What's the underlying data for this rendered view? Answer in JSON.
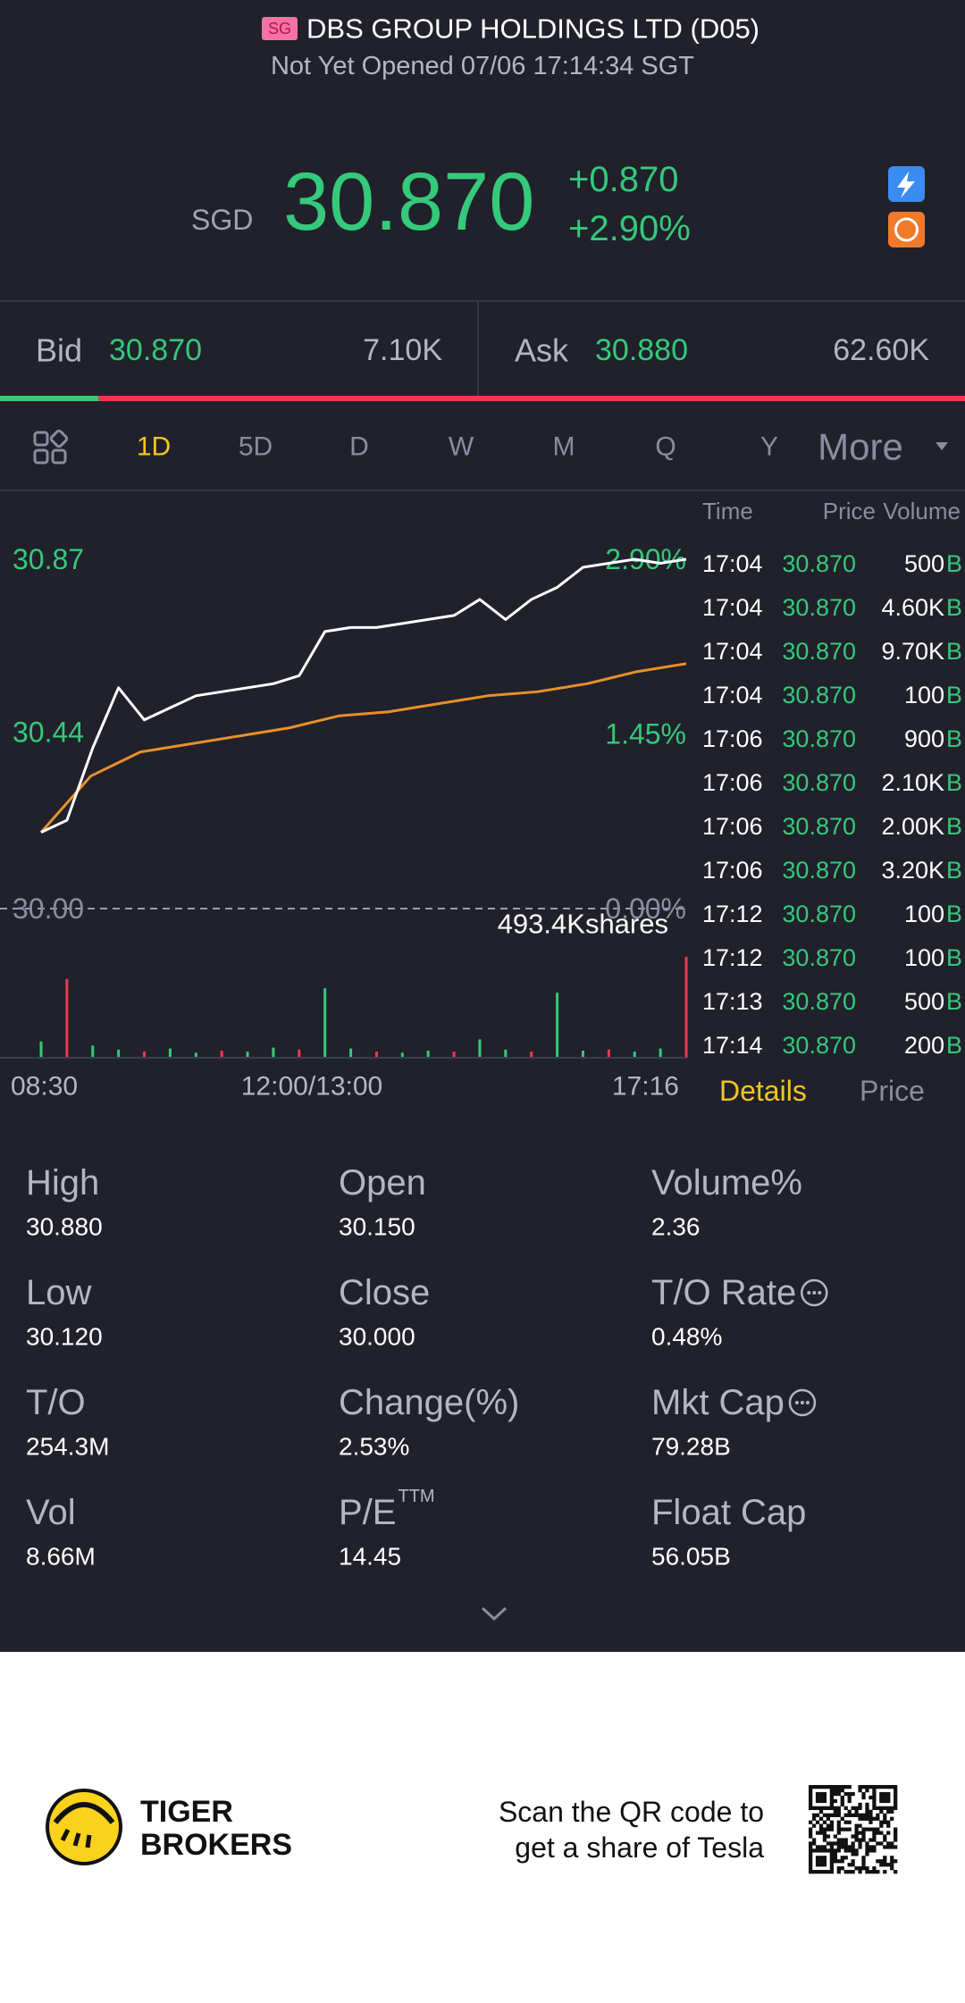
{
  "header": {
    "badge": "SG",
    "title": "DBS GROUP HOLDINGS LTD (D05)",
    "status": "Not Yet Opened 07/06 17:14:34 SGT"
  },
  "quote": {
    "currency": "SGD",
    "price": "30.870",
    "change": "+0.870",
    "change_pct": "+2.90%"
  },
  "order_book": {
    "bid_label": "Bid",
    "bid_price": "30.870",
    "bid_size": "7.10K",
    "ask_label": "Ask",
    "ask_price": "30.880",
    "ask_size": "62.60K"
  },
  "tabs": [
    "1D",
    "5D",
    "D",
    "W",
    "M",
    "Q",
    "Y",
    "More"
  ],
  "active_tab": 0,
  "chart_data": {
    "type": "line",
    "series": [
      {
        "color": "#ffffff",
        "values": [
          30.19,
          30.22,
          30.4,
          30.55,
          30.47,
          30.5,
          30.53,
          30.54,
          30.55,
          30.56,
          30.58,
          30.69,
          30.7,
          30.7,
          30.71,
          30.72,
          30.73,
          30.77,
          30.72,
          30.77,
          30.8,
          30.85,
          30.86,
          30.87,
          30.86,
          30.87
        ]
      },
      {
        "color": "#e8902a",
        "values": [
          30.19,
          30.33,
          30.39,
          30.41,
          30.43,
          30.45,
          30.48,
          30.49,
          30.51,
          30.53,
          30.54,
          30.56,
          30.59,
          30.61
        ]
      }
    ],
    "ylim": [
      30.0,
      30.87
    ],
    "yticks": [
      {
        "value": 30.0,
        "label": "30.00"
      },
      {
        "value": 30.44,
        "label": "30.44"
      },
      {
        "value": 30.87,
        "label": "30.87"
      }
    ],
    "y2lim": [
      0,
      2.9
    ],
    "y2ticks": [
      {
        "value": 0,
        "label": "0.00%"
      },
      {
        "value": 1.45,
        "label": "1.45%"
      },
      {
        "value": 2.9,
        "label": "2.90%"
      }
    ],
    "x_labels": [
      "08:30",
      "12:00/13:00",
      "17:16"
    ],
    "volume": {
      "values": [
        80,
        385,
        60,
        40,
        30,
        45,
        25,
        35,
        30,
        50,
        40,
        340,
        45,
        30,
        25,
        35,
        30,
        90,
        40,
        30,
        318,
        35,
        40,
        30,
        45,
        493.4
      ],
      "ylim": [
        0,
        493.4
      ],
      "yticks": [
        {
          "value": 493.4,
          "label": "493.4Kshares"
        }
      ]
    }
  },
  "trades": {
    "headers": [
      "Time",
      "Price",
      "Volume"
    ],
    "rows": [
      [
        "17:04",
        "30.870",
        "500",
        "B"
      ],
      [
        "17:04",
        "30.870",
        "4.60K",
        "B"
      ],
      [
        "17:04",
        "30.870",
        "9.70K",
        "B"
      ],
      [
        "17:04",
        "30.870",
        "100",
        "B"
      ],
      [
        "17:06",
        "30.870",
        "900",
        "B"
      ],
      [
        "17:06",
        "30.870",
        "2.10K",
        "B"
      ],
      [
        "17:06",
        "30.870",
        "2.00K",
        "B"
      ],
      [
        "17:06",
        "30.870",
        "3.20K",
        "B"
      ],
      [
        "17:12",
        "30.870",
        "100",
        "B"
      ],
      [
        "17:12",
        "30.870",
        "100",
        "B"
      ],
      [
        "17:13",
        "30.870",
        "500",
        "B"
      ],
      [
        "17:14",
        "30.870",
        "200",
        "B"
      ]
    ],
    "tabs": [
      "Details",
      "Price"
    ],
    "active_tab": 0
  },
  "stats": [
    {
      "label": "High",
      "value": "30.880"
    },
    {
      "label": "Open",
      "value": "30.150"
    },
    {
      "label": "Volume%",
      "value": "2.36"
    },
    {
      "label": "Low",
      "value": "30.120"
    },
    {
      "label": "Close",
      "value": "30.000"
    },
    {
      "label": "T/O Rate",
      "value": "0.48%",
      "info": true
    },
    {
      "label": "T/O",
      "value": "254.3M"
    },
    {
      "label": "Change(%)",
      "value": "2.53%"
    },
    {
      "label": "Mkt Cap",
      "value": "79.28B",
      "info": true
    },
    {
      "label": "Vol",
      "value": "8.66M"
    },
    {
      "label": "P/E",
      "sup": "TTM",
      "value": "14.45"
    },
    {
      "label": "Float Cap",
      "value": "56.05B"
    }
  ],
  "footer": {
    "brand": [
      "TIGER",
      "BROKERS"
    ],
    "tagline": [
      "Scan the QR code to",
      "get a share of Tesla"
    ]
  }
}
